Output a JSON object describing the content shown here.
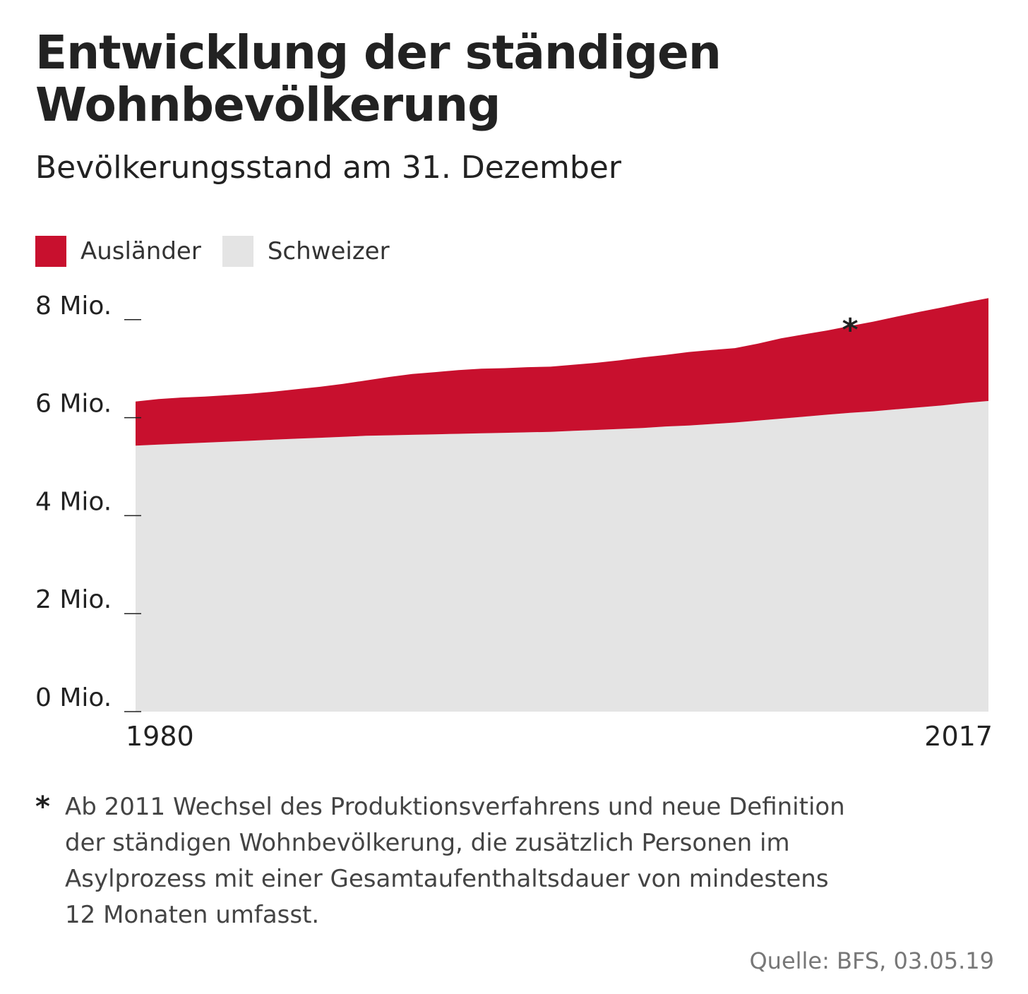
{
  "header": {
    "title": "Entwicklung der ständigen Wohnbevölkerung",
    "subtitle": "Bevölkerungsstand am 31. Dezember"
  },
  "legend": [
    {
      "label": "Ausländer",
      "color": "#c8102e"
    },
    {
      "label": "Schweizer",
      "color": "#e4e4e4"
    }
  ],
  "chart_data": {
    "type": "area",
    "stacked": true,
    "x": [
      1980,
      1981,
      1982,
      1983,
      1984,
      1985,
      1986,
      1987,
      1988,
      1989,
      1990,
      1991,
      1992,
      1993,
      1994,
      1995,
      1996,
      1997,
      1998,
      1999,
      2000,
      2001,
      2002,
      2003,
      2004,
      2005,
      2006,
      2007,
      2008,
      2009,
      2010,
      2011,
      2012,
      2013,
      2014,
      2015,
      2016,
      2017
    ],
    "x_tick_labels": [
      "1980",
      "2017"
    ],
    "y_tick_labels": [
      "0 Mio.",
      "2 Mio.",
      "4 Mio.",
      "6 Mio.",
      "8 Mio."
    ],
    "y_ticks": [
      0,
      2,
      4,
      6,
      8
    ],
    "ylim": [
      0,
      8.6
    ],
    "grid": false,
    "legend_position": "top-left",
    "series": [
      {
        "name": "Schweizer",
        "color": "#e4e4e4",
        "values": [
          5.43,
          5.45,
          5.47,
          5.49,
          5.51,
          5.53,
          5.55,
          5.57,
          5.59,
          5.61,
          5.63,
          5.64,
          5.65,
          5.66,
          5.67,
          5.68,
          5.69,
          5.7,
          5.71,
          5.73,
          5.75,
          5.77,
          5.79,
          5.82,
          5.84,
          5.87,
          5.9,
          5.94,
          5.98,
          6.02,
          6.06,
          6.1,
          6.13,
          6.17,
          6.21,
          6.25,
          6.3,
          6.34
        ]
      },
      {
        "name": "Ausländer",
        "color": "#c8102e",
        "values": [
          0.9,
          0.93,
          0.94,
          0.94,
          0.95,
          0.96,
          0.98,
          1.01,
          1.04,
          1.08,
          1.13,
          1.19,
          1.24,
          1.27,
          1.3,
          1.32,
          1.32,
          1.33,
          1.33,
          1.35,
          1.37,
          1.4,
          1.44,
          1.46,
          1.5,
          1.51,
          1.52,
          1.57,
          1.64,
          1.68,
          1.72,
          1.77,
          1.83,
          1.89,
          1.95,
          2.0,
          2.05,
          2.1
        ]
      }
    ],
    "annotations": [
      {
        "x": 2011,
        "text": "*"
      }
    ]
  },
  "footnote": {
    "marker": "*",
    "text": "Ab 2011 Wechsel des Produktionsverfahrens und neue Definition\nder ständigen Wohnbevölkerung, die zusätzlich Personen im\nAsylprozess mit einer Gesamtaufenthaltsdauer von mindestens\n12 Monaten umfasst."
  },
  "source": "Quelle: BFS, 03.05.19"
}
